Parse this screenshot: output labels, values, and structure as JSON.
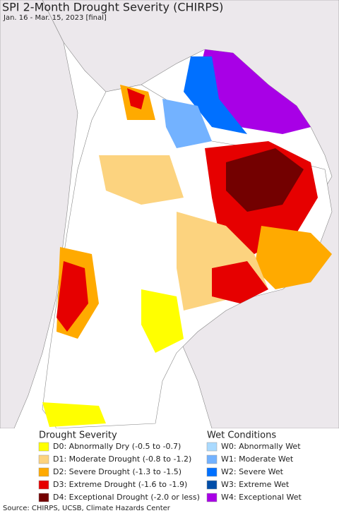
{
  "header": {
    "title": "SPI 2-Month Drought Severity (CHIRPS)",
    "subtitle": "Jan. 16 - Mar. 15, 2023 [final]"
  },
  "legend": {
    "drought": {
      "title": "Drought Severity",
      "items": [
        {
          "label": "D0: Abnormally Dry (-0.5 to -0.7)",
          "color": "#ffff00"
        },
        {
          "label": "D1: Moderate Drought (-0.8 to -1.2)",
          "color": "#fcd37f"
        },
        {
          "label": "D2: Severe Drought (-1.3 to -1.5)",
          "color": "#ffaa00"
        },
        {
          "label": "D3: Extreme Drought (-1.6 to -1.9)",
          "color": "#e60000"
        },
        {
          "label": "D4: Exceptional Drought (-2.0 or less)",
          "color": "#730000"
        }
      ]
    },
    "wet": {
      "title": "Wet Conditions",
      "items": [
        {
          "label": "W0: Abnormally Wet",
          "color": "#aadaff"
        },
        {
          "label": "W1: Moderate Wet",
          "color": "#73b2ff"
        },
        {
          "label": "W2: Severe Wet",
          "color": "#0070ff"
        },
        {
          "label": "W3: Extreme Wet",
          "color": "#004da8"
        },
        {
          "label": "W4: Exceptional Wet",
          "color": "#a800e6"
        }
      ]
    }
  },
  "source": "Source: CHIRPS, UCSB, Climate Hazards Center"
}
